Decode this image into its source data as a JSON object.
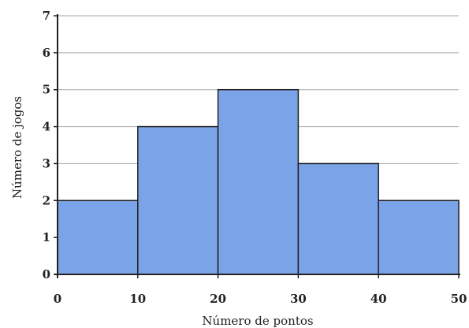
{
  "chart_data": {
    "type": "bar",
    "title": "",
    "xlabel": "Número de pontos",
    "ylabel": "Número de jogos",
    "bins": [
      {
        "start": 0,
        "end": 10,
        "value": 2
      },
      {
        "start": 10,
        "end": 20,
        "value": 4
      },
      {
        "start": 20,
        "end": 30,
        "value": 5
      },
      {
        "start": 30,
        "end": 40,
        "value": 3
      },
      {
        "start": 40,
        "end": 50,
        "value": 2
      }
    ],
    "xlim": [
      0,
      50
    ],
    "ylim": [
      0,
      7
    ],
    "xticks": [
      "0",
      "10",
      "20",
      "30",
      "40",
      "50"
    ],
    "yticks": [
      "0",
      "1",
      "2",
      "3",
      "4",
      "5",
      "6",
      "7"
    ],
    "grid": true,
    "bar_color": "#7ba3e8",
    "bar_edge_color": "#222222",
    "grid_color": "#b8b8b8"
  }
}
